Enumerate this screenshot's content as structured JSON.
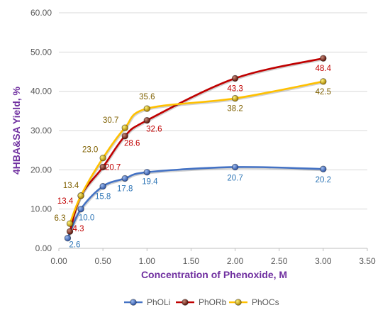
{
  "chart_data": {
    "type": "line",
    "xlabel": "Concentration of Phenoxide, M",
    "ylabel": "4HBA&SA Yield, %",
    "xlim": [
      0,
      3.5
    ],
    "ylim": [
      0,
      60
    ],
    "x_ticks": [
      "0.00",
      "0.50",
      "1.00",
      "1.50",
      "2.00",
      "2.50",
      "3.00",
      "3.50"
    ],
    "y_ticks": [
      "0.00",
      "10.00",
      "20.00",
      "30.00",
      "40.00",
      "50.00",
      "60.00"
    ],
    "x_tick_values": [
      0,
      0.5,
      1,
      1.5,
      2,
      2.5,
      3,
      3.5
    ],
    "y_tick_values": [
      0,
      10,
      20,
      30,
      40,
      50,
      60
    ],
    "grid": "horizontal",
    "legend_position": "bottom",
    "series": [
      {
        "name": "PhOLi",
        "color": "#4472c4",
        "label_color": "#2e75b6",
        "points": [
          {
            "x": 0.1,
            "y": 2.6,
            "label": "2.6"
          },
          {
            "x": 0.25,
            "y": 10.0,
            "label": "10.0"
          },
          {
            "x": 0.5,
            "y": 15.8,
            "label": "15.8"
          },
          {
            "x": 0.75,
            "y": 17.8,
            "label": "17.8"
          },
          {
            "x": 1.0,
            "y": 19.4,
            "label": "19.4"
          },
          {
            "x": 2.0,
            "y": 20.7,
            "label": "20.7"
          },
          {
            "x": 3.0,
            "y": 20.2,
            "label": "20.2"
          }
        ]
      },
      {
        "name": "PhORb",
        "color": "#c00000",
        "label_color": "#c00000",
        "points": [
          {
            "x": 0.125,
            "y": 4.3,
            "label": "4.3"
          },
          {
            "x": 0.25,
            "y": 13.4,
            "label": "13.4"
          },
          {
            "x": 0.5,
            "y": 20.7,
            "label": "20.7"
          },
          {
            "x": 0.75,
            "y": 28.6,
            "label": "28.6"
          },
          {
            "x": 1.0,
            "y": 32.6,
            "label": "32.6"
          },
          {
            "x": 2.0,
            "y": 43.3,
            "label": "43.3"
          },
          {
            "x": 3.0,
            "y": 48.4,
            "label": "48.4"
          }
        ]
      },
      {
        "name": "PhOCs",
        "color": "#ffc000",
        "label_color": "#7f6000",
        "points": [
          {
            "x": 0.125,
            "y": 6.3,
            "label": "6.3"
          },
          {
            "x": 0.25,
            "y": 13.4,
            "label": "13.4"
          },
          {
            "x": 0.5,
            "y": 23.0,
            "label": "23.0"
          },
          {
            "x": 0.75,
            "y": 30.7,
            "label": "30.7"
          },
          {
            "x": 1.0,
            "y": 35.6,
            "label": "35.6"
          },
          {
            "x": 2.0,
            "y": 38.2,
            "label": "38.2"
          },
          {
            "x": 3.0,
            "y": 42.5,
            "label": "42.5"
          }
        ]
      }
    ]
  }
}
